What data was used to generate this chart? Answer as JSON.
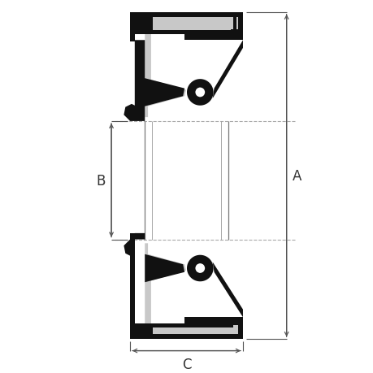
{
  "fig_width": 4.6,
  "fig_height": 4.6,
  "dpi": 100,
  "bg": "#ffffff",
  "dark": "#111111",
  "light": "#c8c8c8",
  "white": "#ffffff",
  "dim_c": "#555555",
  "dash_c": "#aaaaaa",
  "lA": "A",
  "lB": "B",
  "lC": "C",
  "lfs": 12,
  "XL": 157,
  "XR": 302,
  "XLI": 176,
  "XRI": 283,
  "YT": 15,
  "YTbar": 43,
  "YTlip": 155,
  "YBlip": 307,
  "YBbar": 415,
  "YB": 435,
  "scx": 247,
  "sct": 118,
  "scb": 344,
  "sor": 14,
  "sir": 7
}
